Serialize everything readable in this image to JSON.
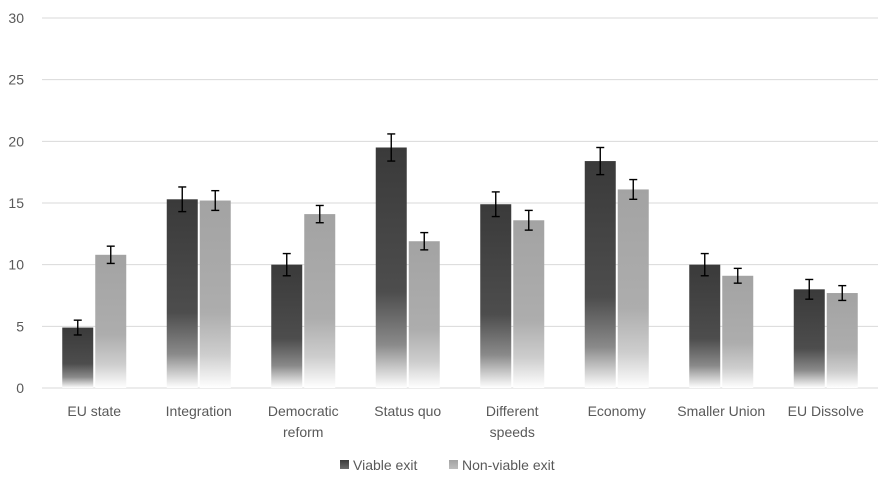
{
  "chart_data": {
    "type": "bar",
    "categories": [
      "EU state",
      "Integration",
      "Democratic reform",
      "Status quo",
      "Different speeds",
      "Economy",
      "Smaller Union",
      "EU Dissolve"
    ],
    "category_display": [
      [
        "EU state"
      ],
      [
        "Integration"
      ],
      [
        "Democratic",
        "reform"
      ],
      [
        "Status quo"
      ],
      [
        "Different",
        "speeds"
      ],
      [
        "Economy"
      ],
      [
        "Smaller Union"
      ],
      [
        "EU Dissolve"
      ]
    ],
    "series": [
      {
        "name": "Viable exit",
        "color": "#404040",
        "values": [
          4.9,
          15.3,
          10.0,
          19.5,
          14.9,
          18.4,
          10.0,
          8.0
        ],
        "errors": [
          0.6,
          1.0,
          0.9,
          1.1,
          1.0,
          1.1,
          0.9,
          0.8
        ]
      },
      {
        "name": "Non-viable exit",
        "color": "#a6a6a6",
        "values": [
          10.8,
          15.2,
          14.1,
          11.9,
          13.6,
          16.1,
          9.1,
          7.7
        ],
        "errors": [
          0.7,
          0.8,
          0.7,
          0.7,
          0.8,
          0.8,
          0.6,
          0.6
        ]
      }
    ],
    "y_ticks": [
      "0",
      "5",
      "10",
      "15",
      "20",
      "25",
      "30"
    ],
    "ylim": [
      0,
      30
    ],
    "grid": true,
    "legend_position": "bottom",
    "title": "",
    "xlabel": "",
    "ylabel": ""
  }
}
